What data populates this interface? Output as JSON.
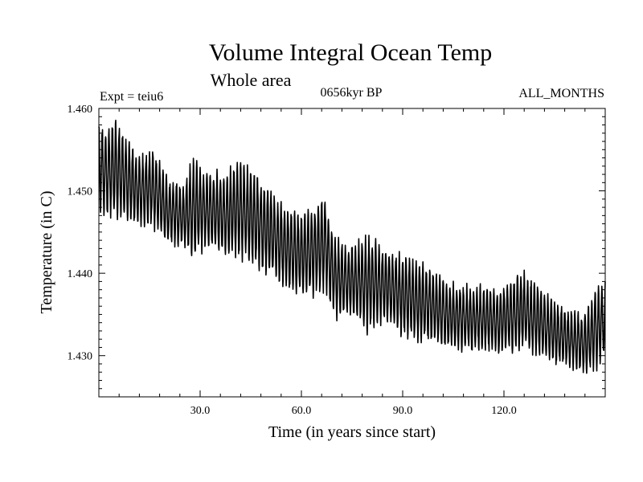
{
  "chart_data": {
    "type": "line",
    "title": "Volume Integral Ocean Temp",
    "subtitle": "Whole area",
    "annotations": {
      "experiment": "Expt = teiu6",
      "period": "0656kyr BP",
      "months": "ALL_MONTHS"
    },
    "xlabel": "Time (in years since start)",
    "ylabel": "Temperature (in C)",
    "xlim": [
      0,
      150
    ],
    "ylim": [
      1.425,
      1.46
    ],
    "x_ticks": [
      30,
      60,
      90,
      120
    ],
    "x_tick_labels": [
      "30.0",
      "60.0",
      "90.0",
      "120.0"
    ],
    "y_ticks": [
      1.43,
      1.44,
      1.45,
      1.46
    ],
    "y_tick_labels": [
      "1.430",
      "1.440",
      "1.450",
      "1.460"
    ],
    "grid": false,
    "series": [
      {
        "name": "Volume integral ocean temperature",
        "sampling": "monthly (12 samples per year)",
        "seasonal_amplitude": 0.0045,
        "envelope_max": [
          [
            0,
            1.4585
          ],
          [
            2,
            1.4575
          ],
          [
            5,
            1.459
          ],
          [
            8,
            1.457
          ],
          [
            12,
            1.4545
          ],
          [
            16,
            1.4555
          ],
          [
            20,
            1.452
          ],
          [
            25,
            1.4505
          ],
          [
            28,
            1.4545
          ],
          [
            32,
            1.4525
          ],
          [
            38,
            1.4525
          ],
          [
            41,
            1.454
          ],
          [
            44,
            1.4535
          ],
          [
            50,
            1.451
          ],
          [
            55,
            1.4485
          ],
          [
            60,
            1.4475
          ],
          [
            63,
            1.4485
          ],
          [
            67,
            1.4495
          ],
          [
            70,
            1.4445
          ],
          [
            75,
            1.4435
          ],
          [
            80,
            1.445
          ],
          [
            84,
            1.4435
          ],
          [
            90,
            1.4425
          ],
          [
            96,
            1.4415
          ],
          [
            102,
            1.4395
          ],
          [
            108,
            1.4385
          ],
          [
            113,
            1.4385
          ],
          [
            119,
            1.4385
          ],
          [
            125,
            1.4405
          ],
          [
            131,
            1.4385
          ],
          [
            136,
            1.4365
          ],
          [
            140,
            1.4355
          ],
          [
            144,
            1.435
          ],
          [
            147,
            1.4385
          ],
          [
            150,
            1.439
          ]
        ],
        "envelope_min": [
          [
            0,
            1.4475
          ],
          [
            3,
            1.4465
          ],
          [
            8,
            1.446
          ],
          [
            12,
            1.4455
          ],
          [
            16,
            1.4455
          ],
          [
            20,
            1.4435
          ],
          [
            25,
            1.443
          ],
          [
            28,
            1.4415
          ],
          [
            32,
            1.443
          ],
          [
            36,
            1.442
          ],
          [
            42,
            1.4415
          ],
          [
            46,
            1.4405
          ],
          [
            50,
            1.4395
          ],
          [
            55,
            1.438
          ],
          [
            60,
            1.437
          ],
          [
            64,
            1.437
          ],
          [
            67,
            1.4375
          ],
          [
            70,
            1.4345
          ],
          [
            75,
            1.4345
          ],
          [
            80,
            1.4325
          ],
          [
            84,
            1.434
          ],
          [
            90,
            1.432
          ],
          [
            96,
            1.4315
          ],
          [
            102,
            1.431
          ],
          [
            108,
            1.4305
          ],
          [
            113,
            1.4305
          ],
          [
            119,
            1.43
          ],
          [
            125,
            1.4305
          ],
          [
            131,
            1.4295
          ],
          [
            136,
            1.4285
          ],
          [
            140,
            1.4285
          ],
          [
            145,
            1.4275
          ],
          [
            148,
            1.4285
          ],
          [
            150,
            1.43
          ]
        ]
      }
    ]
  }
}
